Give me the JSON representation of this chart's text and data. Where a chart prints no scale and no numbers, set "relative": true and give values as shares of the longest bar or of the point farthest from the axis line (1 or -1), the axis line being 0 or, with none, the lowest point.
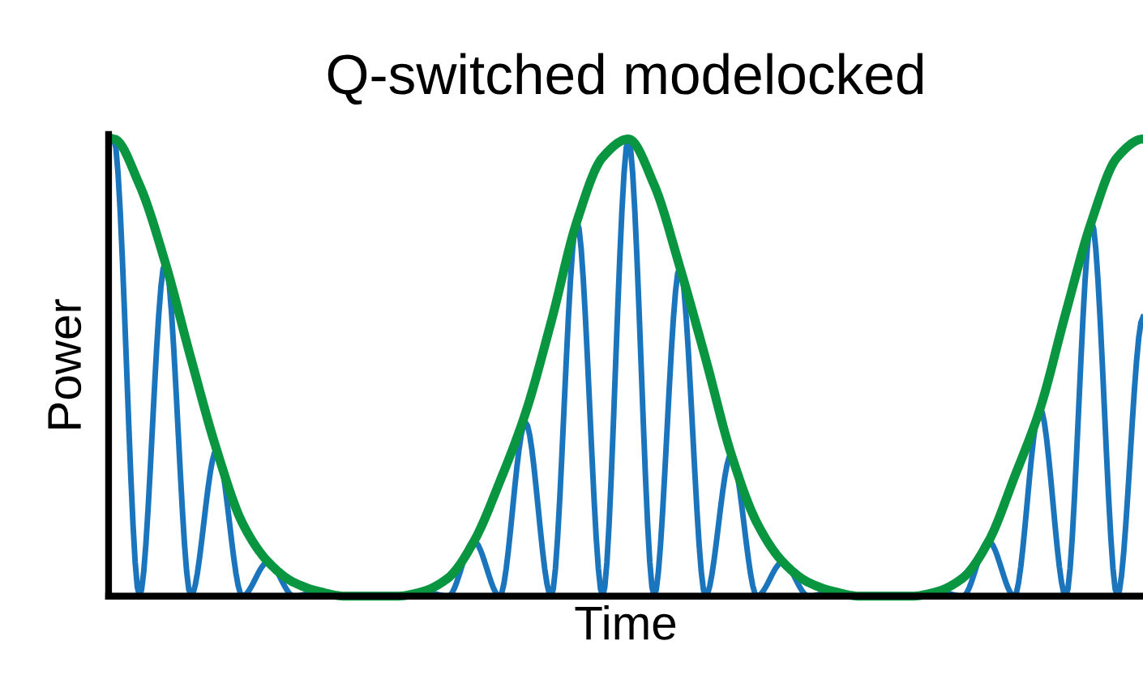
{
  "chart_data": {
    "type": "line",
    "title": "Q-switched modelocked",
    "xlabel": "Time",
    "ylabel": "Power",
    "relative": true,
    "marker": "none",
    "line_style": "solid",
    "categories": [
      null,
      null,
      null,
      null,
      null,
      null,
      null,
      null,
      null,
      null,
      null,
      null,
      null,
      null,
      null,
      null,
      null,
      null,
      null,
      null,
      null,
      null,
      null,
      null,
      null,
      null,
      null,
      null,
      null,
      null,
      null,
      null,
      null,
      null,
      null,
      null,
      null,
      null,
      null,
      null,
      null
    ],
    "series": [
      {
        "color": "#1b75bc",
        "values": [
          1.0,
          0,
          0.73,
          0,
          0.32,
          0,
          0.075,
          0,
          0.01,
          0,
          0,
          0,
          0.01,
          0,
          0.12,
          0,
          0.38,
          0,
          0.82,
          0,
          1.0,
          0,
          0.72,
          0,
          0.31,
          0,
          0.075,
          0,
          0.01,
          0,
          0,
          0,
          0.01,
          0,
          0.12,
          0,
          0.41,
          0,
          0.82,
          0,
          0.61
        ]
      },
      {
        "color": "#0a9640",
        "values": [
          1.0,
          0.9,
          0.73,
          0.52,
          0.32,
          0.16,
          0.075,
          0.03,
          0.01,
          0,
          0,
          0,
          0.01,
          0.04,
          0.12,
          0.25,
          0.4,
          0.6,
          0.82,
          0.96,
          1.0,
          0.9,
          0.72,
          0.52,
          0.31,
          0.16,
          0.075,
          0.03,
          0.01,
          0,
          0,
          0,
          0.01,
          0.04,
          0.12,
          0.26,
          0.41,
          0.62,
          0.82,
          0.96,
          1.0
        ]
      }
    ]
  }
}
